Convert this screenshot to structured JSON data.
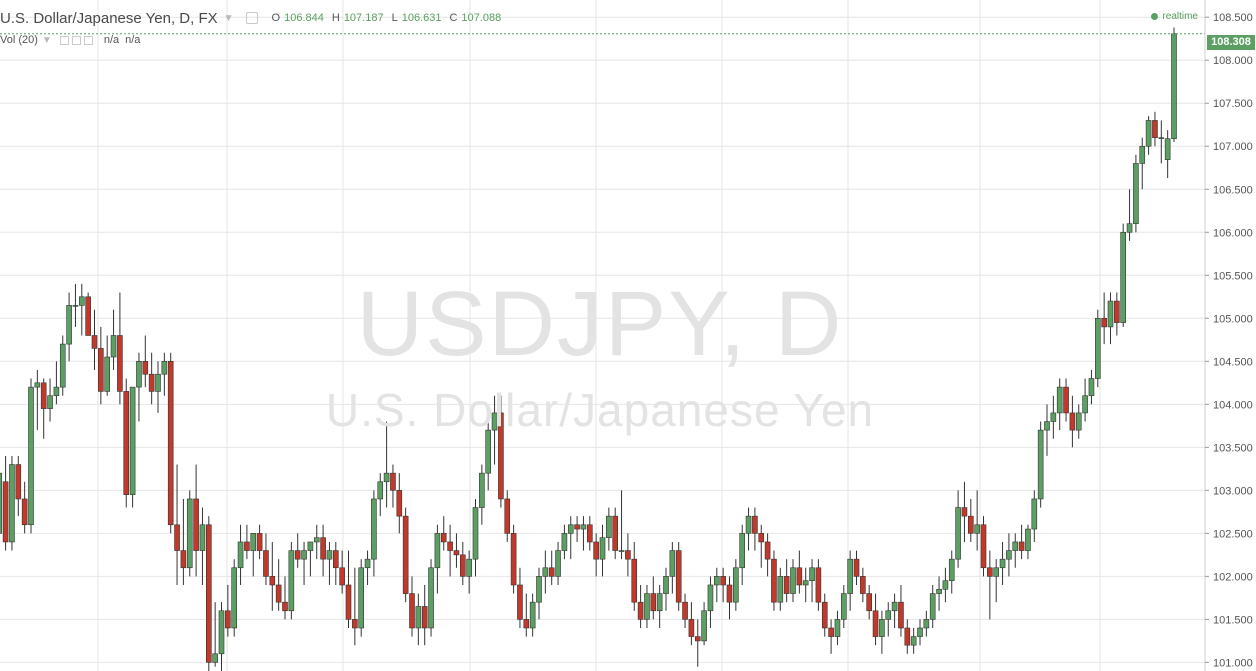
{
  "header": {
    "symbol_title": "U.S. Dollar/Japanese Yen, D, FX",
    "open_label": "O",
    "open_value": "106.844",
    "high_label": "H",
    "high_value": "107.187",
    "low_label": "L",
    "low_value": "106.631",
    "close_label": "C",
    "close_value": "107.088",
    "realtime_label": "realtime"
  },
  "volume_indicator": {
    "label": "Vol (20)",
    "value1": "n/a",
    "value2": "n/a"
  },
  "watermark": {
    "symbol": "USDJPY, D",
    "description": "U.S. Dollar/Japanese Yen"
  },
  "last_price": "108.308",
  "colors": {
    "up": "#5b9f63",
    "down": "#c0392b",
    "grid": "#e6e6e6",
    "wick": "#333333"
  },
  "chart_data": {
    "type": "candlestick",
    "title": "U.S. Dollar/Japanese Yen, D, FX",
    "ylim": [
      100.9,
      108.7
    ],
    "y_ticks": [
      "108.500",
      "108.000",
      "107.500",
      "107.000",
      "106.500",
      "106.000",
      "105.500",
      "105.000",
      "104.500",
      "104.000",
      "103.500",
      "103.000",
      "102.500",
      "102.000",
      "101.500",
      "101.000"
    ],
    "grid": true,
    "ohlc": [
      [
        102.6,
        103.3,
        101.8,
        102.5
      ],
      [
        102.5,
        103.35,
        102.3,
        103.2
      ],
      [
        103.1,
        103.4,
        102.3,
        102.4
      ],
      [
        102.4,
        103.4,
        102.3,
        103.3
      ],
      [
        103.3,
        103.4,
        102.7,
        102.9
      ],
      [
        102.9,
        103.1,
        102.5,
        102.6
      ],
      [
        102.6,
        104.3,
        102.5,
        104.2
      ],
      [
        104.2,
        104.4,
        103.7,
        104.25
      ],
      [
        104.25,
        104.3,
        103.6,
        103.95
      ],
      [
        103.95,
        104.3,
        103.8,
        104.1
      ],
      [
        104.1,
        104.5,
        104.0,
        104.2
      ],
      [
        104.2,
        104.8,
        104.1,
        104.7
      ],
      [
        104.7,
        105.3,
        104.5,
        105.15
      ],
      [
        105.15,
        105.4,
        104.9,
        105.15
      ],
      [
        105.15,
        105.4,
        104.8,
        105.25
      ],
      [
        105.25,
        105.3,
        104.8,
        104.8
      ],
      [
        104.8,
        105.1,
        104.4,
        104.65
      ],
      [
        104.65,
        104.9,
        104.0,
        104.15
      ],
      [
        104.15,
        104.8,
        104.1,
        104.55
      ],
      [
        104.55,
        105.1,
        104.4,
        104.8
      ],
      [
        104.8,
        105.3,
        104.0,
        104.15
      ],
      [
        104.15,
        104.3,
        102.8,
        102.95
      ],
      [
        102.95,
        104.2,
        102.8,
        104.2
      ],
      [
        104.2,
        104.6,
        103.8,
        104.5
      ],
      [
        104.5,
        104.8,
        104.2,
        104.35
      ],
      [
        104.35,
        104.6,
        104.0,
        104.15
      ],
      [
        104.15,
        104.5,
        103.9,
        104.35
      ],
      [
        104.35,
        104.6,
        104.1,
        104.5
      ],
      [
        104.5,
        104.6,
        102.5,
        102.6
      ],
      [
        102.6,
        103.3,
        101.9,
        102.3
      ],
      [
        102.3,
        102.9,
        101.9,
        102.1
      ],
      [
        102.1,
        103.0,
        102.0,
        102.9
      ],
      [
        102.9,
        103.3,
        102.0,
        102.3
      ],
      [
        102.3,
        102.8,
        101.9,
        102.6
      ],
      [
        102.6,
        102.7,
        100.9,
        101.0
      ],
      [
        101.0,
        101.7,
        100.95,
        101.1
      ],
      [
        101.1,
        101.7,
        100.9,
        101.6
      ],
      [
        101.6,
        101.9,
        101.3,
        101.4
      ],
      [
        101.4,
        102.2,
        101.3,
        102.1
      ],
      [
        102.1,
        102.6,
        101.9,
        102.4
      ],
      [
        102.4,
        102.6,
        102.2,
        102.3
      ],
      [
        102.3,
        102.5,
        102.0,
        102.5
      ],
      [
        102.5,
        102.6,
        102.2,
        102.3
      ],
      [
        102.3,
        102.5,
        101.9,
        102.0
      ],
      [
        102.0,
        102.4,
        101.6,
        101.9
      ],
      [
        101.9,
        102.2,
        101.6,
        101.7
      ],
      [
        101.7,
        102.0,
        101.5,
        101.6
      ],
      [
        101.6,
        102.4,
        101.5,
        102.3
      ],
      [
        102.3,
        102.5,
        102.1,
        102.2
      ],
      [
        102.2,
        102.4,
        101.9,
        102.3
      ],
      [
        102.3,
        102.4,
        102.0,
        102.4
      ],
      [
        102.4,
        102.6,
        102.2,
        102.45
      ],
      [
        102.45,
        102.6,
        102.0,
        102.2
      ],
      [
        102.2,
        102.4,
        101.9,
        102.3
      ],
      [
        102.3,
        102.4,
        101.9,
        102.1
      ],
      [
        102.1,
        102.3,
        101.8,
        101.9
      ],
      [
        101.9,
        102.3,
        101.4,
        101.5
      ],
      [
        101.5,
        102.1,
        101.2,
        101.4
      ],
      [
        101.4,
        102.2,
        101.3,
        102.1
      ],
      [
        102.1,
        102.3,
        101.9,
        102.2
      ],
      [
        102.2,
        103.0,
        102.0,
        102.9
      ],
      [
        102.9,
        103.2,
        102.7,
        103.1
      ],
      [
        103.1,
        103.8,
        102.8,
        103.2
      ],
      [
        103.2,
        103.3,
        102.8,
        103.0
      ],
      [
        103.0,
        103.2,
        102.5,
        102.7
      ],
      [
        102.7,
        102.8,
        101.7,
        101.8
      ],
      [
        101.8,
        102.0,
        101.3,
        101.4
      ],
      [
        101.4,
        101.8,
        101.2,
        101.65
      ],
      [
        101.65,
        101.9,
        101.2,
        101.4
      ],
      [
        101.4,
        102.2,
        101.3,
        102.1
      ],
      [
        102.1,
        102.6,
        101.8,
        102.5
      ],
      [
        102.5,
        102.7,
        102.3,
        102.4
      ],
      [
        102.4,
        102.6,
        102.0,
        102.3
      ],
      [
        102.3,
        102.5,
        102.1,
        102.25
      ],
      [
        102.25,
        102.4,
        101.9,
        102.0
      ],
      [
        102.0,
        102.3,
        101.8,
        102.2
      ],
      [
        102.2,
        102.9,
        102.0,
        102.8
      ],
      [
        102.8,
        103.3,
        102.6,
        103.2
      ],
      [
        103.2,
        103.8,
        103.0,
        103.7
      ],
      [
        103.7,
        104.1,
        103.3,
        103.9
      ],
      [
        103.9,
        104.1,
        102.8,
        102.9
      ],
      [
        102.9,
        103.0,
        102.4,
        102.5
      ],
      [
        102.5,
        102.6,
        101.8,
        101.9
      ],
      [
        101.9,
        102.1,
        101.4,
        101.5
      ],
      [
        101.5,
        101.8,
        101.3,
        101.4
      ],
      [
        101.4,
        101.8,
        101.3,
        101.7
      ],
      [
        101.7,
        102.1,
        101.5,
        102.0
      ],
      [
        102.0,
        102.3,
        101.8,
        102.1
      ],
      [
        102.1,
        102.3,
        101.9,
        102.0
      ],
      [
        102.0,
        102.4,
        101.9,
        102.3
      ],
      [
        102.3,
        102.6,
        102.2,
        102.5
      ],
      [
        102.5,
        102.7,
        102.2,
        102.6
      ],
      [
        102.6,
        102.7,
        102.4,
        102.55
      ],
      [
        102.55,
        102.7,
        102.3,
        102.6
      ],
      [
        102.6,
        102.7,
        102.3,
        102.4
      ],
      [
        102.4,
        102.5,
        102.0,
        102.2
      ],
      [
        102.2,
        102.6,
        102.0,
        102.45
      ],
      [
        102.45,
        102.8,
        102.3,
        102.7
      ],
      [
        102.7,
        102.8,
        102.2,
        102.3
      ],
      [
        102.3,
        103.0,
        102.2,
        102.3
      ],
      [
        102.3,
        102.5,
        102.0,
        102.2
      ],
      [
        102.2,
        102.4,
        101.6,
        101.7
      ],
      [
        101.7,
        101.9,
        101.4,
        101.5
      ],
      [
        101.5,
        101.9,
        101.4,
        101.8
      ],
      [
        101.8,
        102.0,
        101.5,
        101.6
      ],
      [
        101.6,
        101.9,
        101.4,
        101.8
      ],
      [
        101.8,
        102.1,
        101.6,
        102.0
      ],
      [
        102.0,
        102.4,
        101.8,
        102.3
      ],
      [
        102.3,
        102.4,
        101.6,
        101.7
      ],
      [
        101.7,
        101.8,
        101.4,
        101.5
      ],
      [
        101.5,
        101.7,
        101.2,
        101.3
      ],
      [
        101.3,
        101.5,
        100.95,
        101.25
      ],
      [
        101.25,
        101.7,
        101.2,
        101.6
      ],
      [
        101.6,
        102.0,
        101.4,
        101.9
      ],
      [
        101.9,
        102.1,
        101.7,
        102.0
      ],
      [
        102.0,
        102.1,
        101.7,
        101.9
      ],
      [
        101.9,
        102.0,
        101.5,
        101.7
      ],
      [
        101.7,
        102.2,
        101.6,
        102.1
      ],
      [
        102.1,
        102.6,
        101.9,
        102.5
      ],
      [
        102.5,
        102.8,
        102.3,
        102.7
      ],
      [
        102.7,
        102.8,
        102.3,
        102.5
      ],
      [
        102.5,
        102.6,
        102.1,
        102.4
      ],
      [
        102.4,
        102.5,
        102.0,
        102.2
      ],
      [
        102.2,
        102.3,
        101.6,
        101.7
      ],
      [
        101.7,
        102.1,
        101.6,
        102.0
      ],
      [
        102.0,
        102.2,
        101.7,
        101.8
      ],
      [
        101.8,
        102.2,
        101.7,
        102.1
      ],
      [
        102.1,
        102.3,
        101.8,
        101.9
      ],
      [
        101.9,
        102.1,
        101.7,
        101.95
      ],
      [
        101.95,
        102.2,
        101.7,
        102.1
      ],
      [
        102.1,
        102.2,
        101.6,
        101.7
      ],
      [
        101.7,
        101.8,
        101.3,
        101.4
      ],
      [
        101.4,
        101.5,
        101.1,
        101.3
      ],
      [
        101.3,
        101.6,
        101.2,
        101.5
      ],
      [
        101.5,
        101.9,
        101.4,
        101.8
      ],
      [
        101.8,
        102.3,
        101.6,
        102.2
      ],
      [
        102.2,
        102.3,
        101.9,
        102.0
      ],
      [
        102.0,
        102.1,
        101.7,
        101.8
      ],
      [
        101.8,
        101.9,
        101.5,
        101.6
      ],
      [
        101.6,
        101.8,
        101.2,
        101.3
      ],
      [
        101.3,
        101.6,
        101.1,
        101.5
      ],
      [
        101.5,
        101.7,
        101.3,
        101.6
      ],
      [
        101.6,
        101.8,
        101.4,
        101.7
      ],
      [
        101.7,
        101.9,
        101.3,
        101.4
      ],
      [
        101.4,
        101.5,
        101.1,
        101.2
      ],
      [
        101.2,
        101.4,
        101.1,
        101.3
      ],
      [
        101.3,
        101.5,
        101.2,
        101.4
      ],
      [
        101.4,
        101.6,
        101.3,
        101.5
      ],
      [
        101.5,
        101.9,
        101.4,
        101.8
      ],
      [
        101.8,
        102.0,
        101.6,
        101.85
      ],
      [
        101.85,
        102.1,
        101.7,
        101.95
      ],
      [
        101.95,
        102.3,
        101.8,
        102.2
      ],
      [
        102.2,
        103.0,
        102.1,
        102.8
      ],
      [
        102.8,
        103.1,
        102.4,
        102.7
      ],
      [
        102.7,
        102.9,
        102.4,
        102.5
      ],
      [
        102.5,
        103.0,
        102.3,
        102.6
      ],
      [
        102.6,
        102.7,
        102.0,
        102.1
      ],
      [
        102.1,
        102.3,
        101.5,
        102.0
      ],
      [
        102.0,
        102.2,
        101.7,
        102.1
      ],
      [
        102.1,
        102.4,
        101.9,
        102.2
      ],
      [
        102.2,
        102.5,
        102.0,
        102.3
      ],
      [
        102.3,
        102.5,
        102.1,
        102.4
      ],
      [
        102.4,
        102.6,
        102.2,
        102.3
      ],
      [
        102.3,
        102.6,
        102.2,
        102.55
      ],
      [
        102.55,
        103.0,
        102.4,
        102.9
      ],
      [
        102.9,
        103.8,
        102.8,
        103.7
      ],
      [
        103.7,
        104.0,
        103.4,
        103.8
      ],
      [
        103.8,
        104.1,
        103.6,
        103.9
      ],
      [
        103.9,
        104.3,
        103.7,
        104.2
      ],
      [
        104.2,
        104.3,
        103.8,
        103.9
      ],
      [
        103.9,
        104.1,
        103.5,
        103.7
      ],
      [
        103.7,
        104.0,
        103.6,
        103.9
      ],
      [
        103.9,
        104.3,
        103.8,
        104.1
      ],
      [
        104.1,
        104.4,
        104.0,
        104.3
      ],
      [
        104.3,
        105.1,
        104.2,
        105.0
      ],
      [
        105.0,
        105.3,
        104.7,
        104.9
      ],
      [
        104.9,
        105.3,
        104.7,
        105.2
      ],
      [
        105.2,
        105.3,
        104.8,
        104.95
      ],
      [
        104.95,
        106.1,
        104.9,
        106.0
      ],
      [
        106.0,
        106.5,
        105.9,
        106.1
      ],
      [
        106.1,
        106.9,
        106.0,
        106.8
      ],
      [
        106.8,
        107.1,
        106.5,
        107.0
      ],
      [
        107.0,
        107.35,
        106.9,
        107.3
      ],
      [
        107.3,
        107.4,
        107.0,
        107.1
      ],
      [
        107.1,
        107.3,
        106.8,
        107.1
      ],
      [
        106.844,
        107.187,
        106.631,
        107.088
      ],
      [
        107.088,
        108.38,
        107.05,
        108.308
      ]
    ]
  }
}
